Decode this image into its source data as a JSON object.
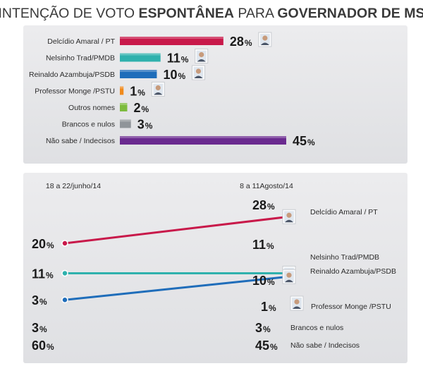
{
  "title": {
    "part1": "INTENÇÃO DE VOTO ",
    "part2": "ESPONTÂNEA",
    "part3": " PARA ",
    "part4": "GOVERNADOR DE MS"
  },
  "colors": {
    "panel_bg": "#e6e7e9",
    "delcidio": "#c8194a",
    "nelsinho": "#2fb1ad",
    "reinaldo": "#1f6dba",
    "monge": "#f08a1c",
    "outros": "#7dbb3e",
    "brancos": "#8f9499",
    "naosabe": "#6a2a8f"
  },
  "chart_data": [
    {
      "type": "bar",
      "orientation": "horizontal",
      "unit": "%",
      "categories": [
        "Delcídio Amaral / PT",
        "Nelsinho Trad/PMDB",
        "Reinaldo Azambuja/PSDB",
        "Professor Monge /PSTU",
        "Outros nomes",
        "Brancos e nulos",
        "Não sabe / Indecisos"
      ],
      "values": [
        28,
        11,
        10,
        1,
        2,
        3,
        45
      ],
      "value_labels": [
        "28",
        "11",
        "10",
        "1",
        "2",
        "3",
        "45"
      ],
      "colors": [
        "#c8194a",
        "#2fb1ad",
        "#1f6dba",
        "#f08a1c",
        "#7dbb3e",
        "#8f9499",
        "#6a2a8f"
      ],
      "photo_icons": [
        "delcidio-photo-icon",
        "nelsinho-photo-icon",
        "reinaldo-photo-icon",
        "monge-photo-icon",
        null,
        null,
        null
      ],
      "xlim": [
        0,
        45
      ]
    },
    {
      "type": "line",
      "unit": "%",
      "periods": [
        "18 a 22/junho/14",
        "8 a 11Agosto/14"
      ],
      "series": [
        {
          "name": "Delcídio Amaral / PT",
          "values": [
            20,
            28
          ],
          "color": "#c8194a",
          "icon": "delcidio-photo-icon"
        },
        {
          "name": "Nelsinho Trad/PMDB",
          "values": [
            11,
            11
          ],
          "color": "#2fb1ad",
          "icon": "nelsinho-photo-icon"
        },
        {
          "name": "Reinaldo Azambuja/PSDB",
          "values": [
            3,
            10
          ],
          "color": "#1f6dba",
          "icon": "reinaldo-photo-icon"
        }
      ],
      "others": [
        {
          "name": "Professor Monge /PSTU",
          "values": [
            null,
            1
          ],
          "icon": "monge-photo-icon"
        },
        {
          "name": "Brancos e nulos",
          "values": [
            3,
            3
          ]
        },
        {
          "name": "Não sabe / Indecisos",
          "values": [
            60,
            45
          ]
        }
      ],
      "ylim": [
        0,
        30
      ]
    }
  ]
}
